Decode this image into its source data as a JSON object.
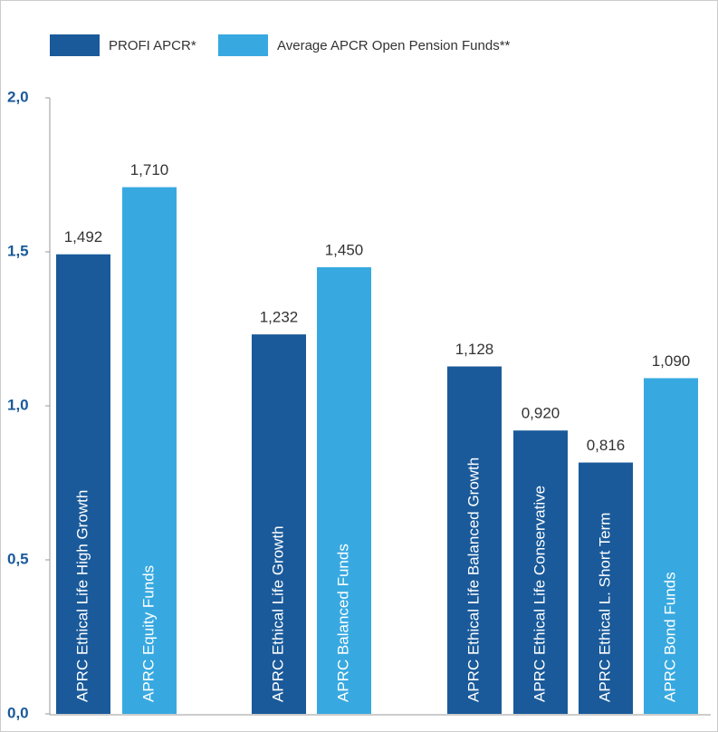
{
  "chart_data": {
    "type": "bar",
    "categories": [
      "APRC Ethical Life High Growth",
      "APRC Equity Funds",
      "APRC Ethical Life Growth",
      "APRC Balanced Funds",
      "APRC Ethical Life Balanced Growth",
      "APRC Ethical Life Conservative",
      "APRC Ethical L.  Short Term",
      "APRC Bond Funds"
    ],
    "series": [
      {
        "name": "PROFI APCR*",
        "color": "#1a5a9a",
        "values": [
          1.492,
          null,
          1.232,
          null,
          1.128,
          0.92,
          0.816,
          null
        ],
        "value_labels": [
          "1,492",
          null,
          "1,232",
          null,
          "1,128",
          "0,920",
          "0,816",
          null
        ]
      },
      {
        "name": "Average APCR Open Pension Funds**",
        "color": "#38a9e0",
        "values": [
          null,
          1.71,
          null,
          1.45,
          null,
          null,
          null,
          1.09
        ],
        "value_labels": [
          null,
          "1,710",
          null,
          "1,450",
          null,
          null,
          null,
          "1,090"
        ]
      }
    ],
    "ylim": [
      0,
      2
    ],
    "yticks": [
      {
        "value": 0,
        "label": "0,0"
      },
      {
        "value": 0.5,
        "label": "0,5"
      },
      {
        "value": 1,
        "label": "1,0"
      },
      {
        "value": 1.5,
        "label": "1,5"
      },
      {
        "value": 2,
        "label": "2,0"
      }
    ]
  }
}
